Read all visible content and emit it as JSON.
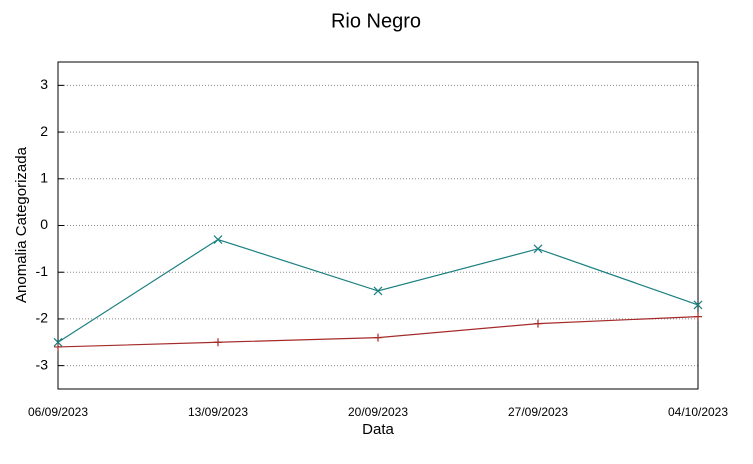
{
  "chart_data": {
    "type": "line",
    "title": "Rio Negro",
    "x_label": "Data",
    "y_label": "Anomalia Categorizada",
    "categories": [
      "06/09/2023",
      "13/09/2023",
      "20/09/2023",
      "27/09/2023",
      "04/10/2023"
    ],
    "series": [
      {
        "color": "#a52a2a",
        "marker": "plus",
        "values": [
          -2.6,
          -2.5,
          -2.4,
          -2.1,
          -1.95
        ]
      },
      {
        "color": "#1a7f80",
        "marker": "cross",
        "values": [
          -2.5,
          -0.3,
          -1.4,
          -0.5,
          -1.7
        ]
      }
    ],
    "ylim": [
      -3.5,
      3.5
    ],
    "yticks": [
      -3,
      -2,
      -1,
      0,
      1,
      2,
      3
    ],
    "grid": true
  }
}
